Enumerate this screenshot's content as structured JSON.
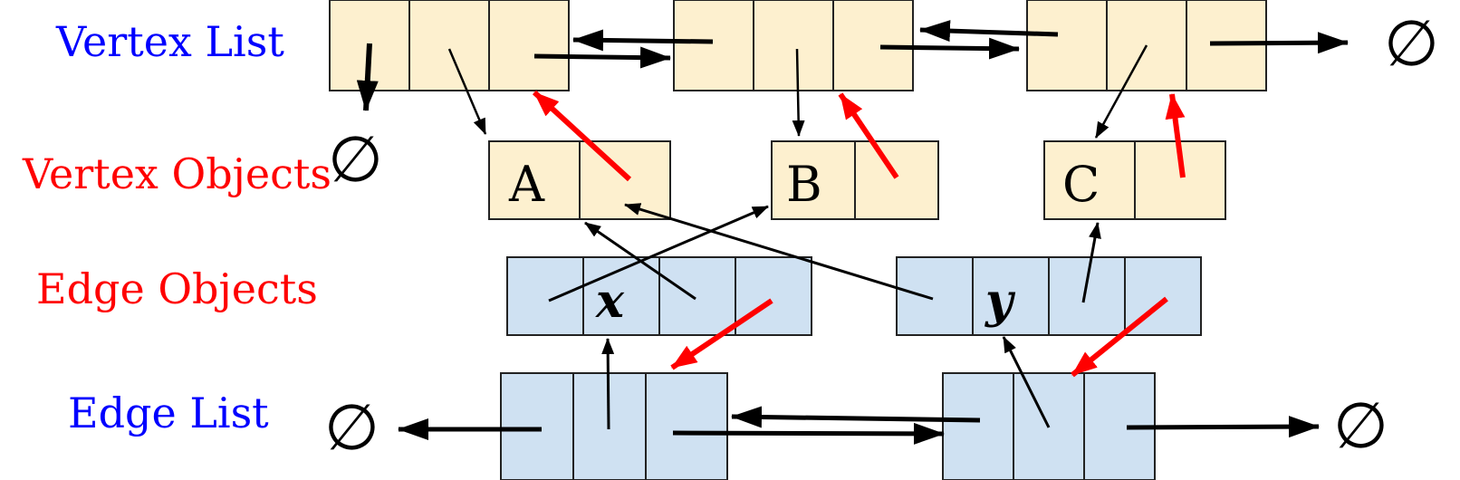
{
  "rows": {
    "vertex_list": "Vertex List",
    "vertex_objects": "Vertex Objects",
    "edge_objects": "Edge Objects",
    "edge_list": "Edge List"
  },
  "vertices": [
    "A",
    "B",
    "C"
  ],
  "edges": [
    "x",
    "y"
  ],
  "null_symbol": "∅",
  "colors": {
    "vertex_fill": "#fdf0cf",
    "edge_fill": "#cfe1f2",
    "list_label": "#0000ff",
    "object_label": "#ff0000",
    "pointer": "#000000",
    "position_pointer": "#ff0000"
  }
}
